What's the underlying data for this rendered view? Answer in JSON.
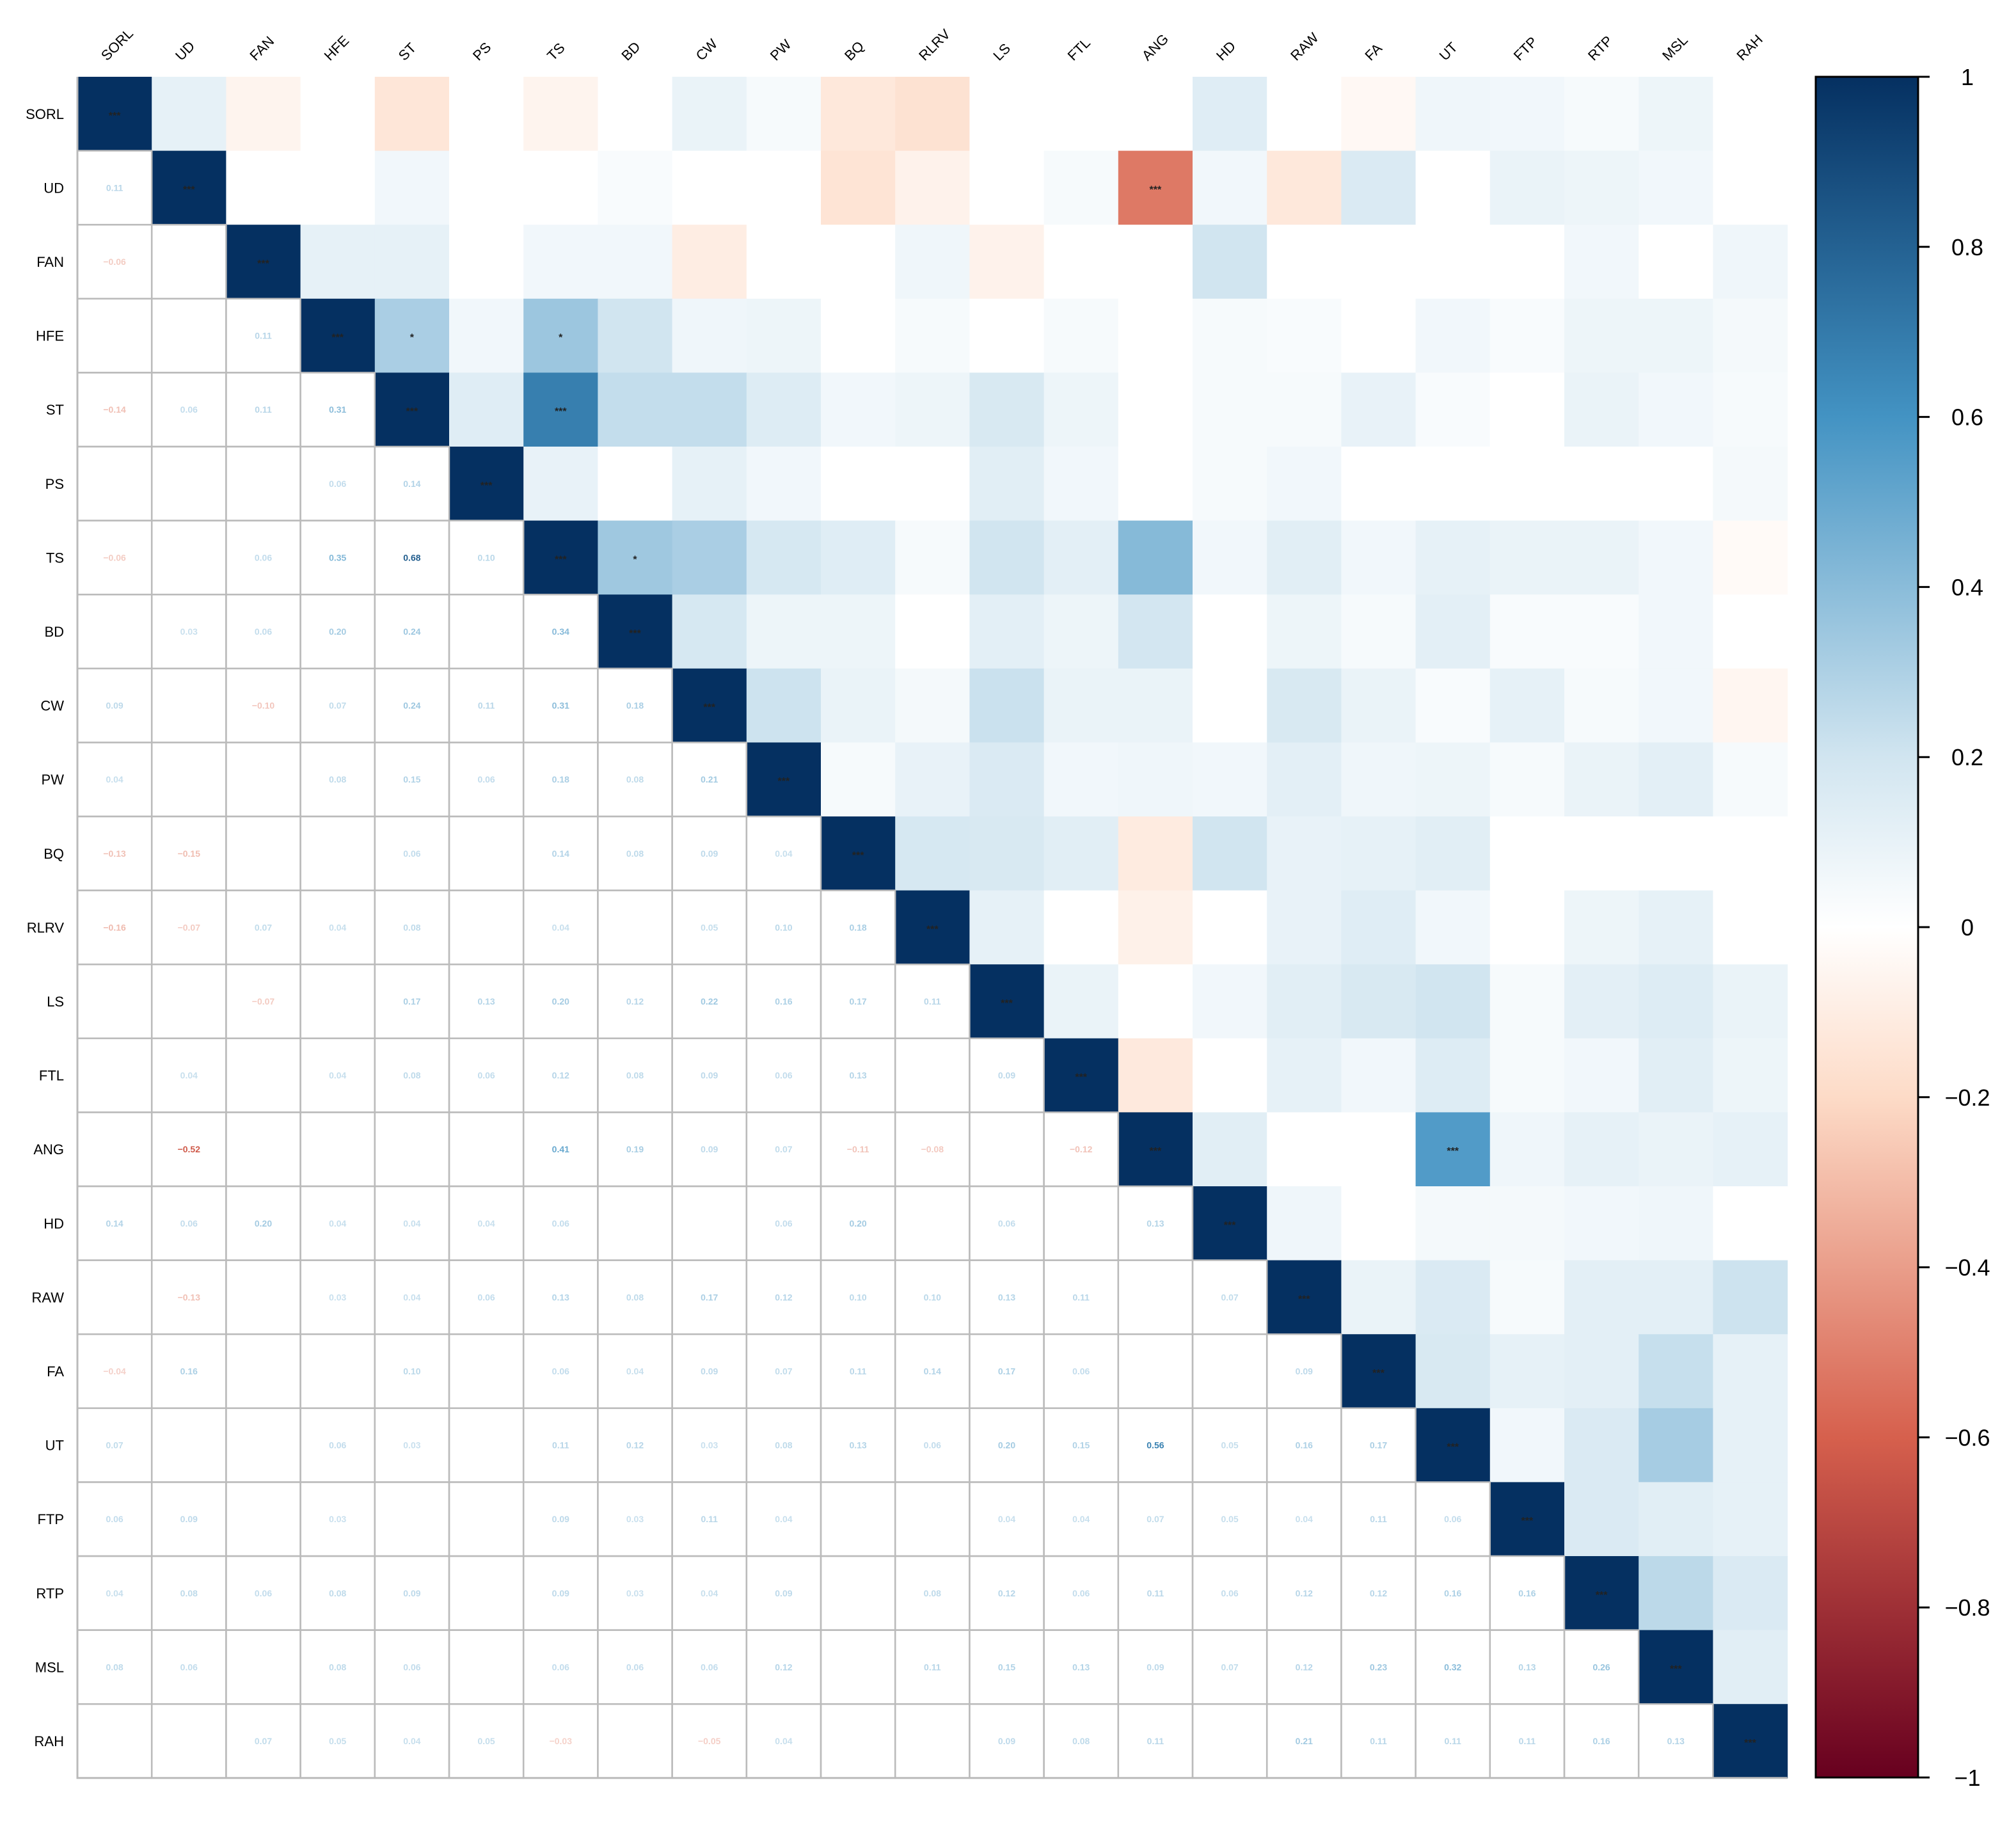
{
  "chart_data": {
    "type": "heatmap",
    "title": "",
    "variables": [
      "SORL",
      "UD",
      "FAN",
      "HFE",
      "ST",
      "PS",
      "TS",
      "BD",
      "CW",
      "PW",
      "BQ",
      "RLRV",
      "LS",
      "FTL",
      "ANG",
      "HD",
      "RAW",
      "FA",
      "UT",
      "FTP",
      "RTP",
      "MSL",
      "RAH"
    ],
    "lower_triangle_labels": [
      [
        "",
        "",
        "",
        "",
        "",
        "",
        "",
        "",
        "",
        "",
        "",
        "",
        "",
        "",
        "",
        "",
        "",
        "",
        "",
        "",
        "",
        "",
        ""
      ],
      [
        "0.11",
        "",
        "",
        "",
        "",
        "",
        "",
        "",
        "",
        "",
        "",
        "",
        "",
        "",
        "",
        "",
        "",
        "",
        "",
        "",
        "",
        "",
        ""
      ],
      [
        "-0.06",
        "",
        "",
        "",
        "",
        "",
        "",
        "",
        "",
        "",
        "",
        "",
        "",
        "",
        "",
        "",
        "",
        "",
        "",
        "",
        "",
        "",
        ""
      ],
      [
        "",
        "",
        "0.11",
        "",
        "",
        "",
        "",
        "",
        "",
        "",
        "",
        "",
        "",
        "",
        "",
        "",
        "",
        "",
        "",
        "",
        "",
        "",
        ""
      ],
      [
        "-0.14",
        "0.06",
        "0.11",
        "0.31",
        "",
        "",
        "",
        "",
        "",
        "",
        "",
        "",
        "",
        "",
        "",
        "",
        "",
        "",
        "",
        "",
        "",
        "",
        ""
      ],
      [
        "",
        "",
        "",
        "0.06",
        "0.14",
        "",
        "",
        "",
        "",
        "",
        "",
        "",
        "",
        "",
        "",
        "",
        "",
        "",
        "",
        "",
        "",
        "",
        ""
      ],
      [
        "-0.06",
        "",
        "0.06",
        "0.35",
        "0.68",
        "0.10",
        "",
        "",
        "",
        "",
        "",
        "",
        "",
        "",
        "",
        "",
        "",
        "",
        "",
        "",
        "",
        "",
        ""
      ],
      [
        "",
        "0.03",
        "0.06",
        "0.20",
        "0.24",
        "",
        "0.34",
        "",
        "",
        "",
        "",
        "",
        "",
        "",
        "",
        "",
        "",
        "",
        "",
        "",
        "",
        "",
        ""
      ],
      [
        "0.09",
        "",
        "-0.10",
        "0.07",
        "0.24",
        "0.11",
        "0.31",
        "0.18",
        "",
        "",
        "",
        "",
        "",
        "",
        "",
        "",
        "",
        "",
        "",
        "",
        "",
        "",
        ""
      ],
      [
        "0.04",
        "",
        "",
        "0.08",
        "0.15",
        "0.06",
        "0.18",
        "0.08",
        "0.21",
        "",
        "",
        "",
        "",
        "",
        "",
        "",
        "",
        "",
        "",
        "",
        "",
        "",
        ""
      ],
      [
        "-0.13",
        "-0.15",
        "",
        "",
        "0.06",
        "",
        "0.14",
        "0.08",
        "0.09",
        "0.04",
        "",
        "",
        "",
        "",
        "",
        "",
        "",
        "",
        "",
        "",
        "",
        "",
        ""
      ],
      [
        "-0.16",
        "-0.07",
        "0.07",
        "0.04",
        "0.08",
        "",
        "0.04",
        "",
        "0.05",
        "0.10",
        "0.18",
        "",
        "",
        "",
        "",
        "",
        "",
        "",
        "",
        "",
        "",
        "",
        ""
      ],
      [
        "",
        "",
        "-0.07",
        "",
        "0.17",
        "0.13",
        "0.20",
        "0.12",
        "0.22",
        "0.16",
        "0.17",
        "0.11",
        "",
        "",
        "",
        "",
        "",
        "",
        "",
        "",
        "",
        "",
        ""
      ],
      [
        "",
        "0.04",
        "",
        "0.04",
        "0.08",
        "0.06",
        "0.12",
        "0.08",
        "0.09",
        "0.06",
        "0.13",
        "",
        "0.09",
        "",
        "",
        "",
        "",
        "",
        "",
        "",
        "",
        "",
        ""
      ],
      [
        "",
        "-0.52",
        "",
        "",
        "",
        "",
        "0.41",
        "0.19",
        "0.09",
        "0.07",
        "-0.11",
        "-0.08",
        "",
        "-0.12",
        "",
        "",
        "",
        "",
        "",
        "",
        "",
        "",
        ""
      ],
      [
        "0.14",
        "0.06",
        "0.20",
        "0.04",
        "0.04",
        "0.04",
        "0.06",
        "",
        "",
        "0.06",
        "0.20",
        "",
        "0.06",
        "",
        "0.13",
        "",
        "",
        "",
        "",
        "",
        "",
        "",
        ""
      ],
      [
        "",
        "-0.13",
        "",
        "0.03",
        "0.04",
        "0.06",
        "0.13",
        "0.08",
        "0.17",
        "0.12",
        "0.10",
        "0.10",
        "0.13",
        "0.11",
        "",
        "0.07",
        "",
        "",
        "",
        "",
        "",
        "",
        ""
      ],
      [
        "-0.04",
        "0.16",
        "",
        "",
        "0.10",
        "",
        "0.06",
        "0.04",
        "0.09",
        "0.07",
        "0.11",
        "0.14",
        "0.17",
        "0.06",
        "",
        "",
        "0.09",
        "",
        "",
        "",
        "",
        "",
        ""
      ],
      [
        "0.07",
        "",
        "",
        "0.06",
        "0.03",
        "",
        "0.11",
        "0.12",
        "0.03",
        "0.08",
        "0.13",
        "0.06",
        "0.20",
        "0.15",
        "0.56",
        "0.05",
        "0.16",
        "0.17",
        "",
        "",
        "",
        "",
        ""
      ],
      [
        "0.06",
        "0.09",
        "",
        "0.03",
        "",
        "",
        "0.09",
        "0.03",
        "0.11",
        "0.04",
        "",
        "",
        "0.04",
        "0.04",
        "0.07",
        "0.05",
        "0.04",
        "0.11",
        "0.06",
        "",
        "",
        "",
        ""
      ],
      [
        "0.04",
        "0.08",
        "0.06",
        "0.08",
        "0.09",
        "",
        "0.09",
        "0.03",
        "0.04",
        "0.09",
        "",
        "0.08",
        "0.12",
        "0.06",
        "0.11",
        "0.06",
        "0.12",
        "0.12",
        "0.16",
        "0.16",
        "",
        "",
        ""
      ],
      [
        "0.08",
        "0.06",
        "",
        "0.08",
        "0.06",
        "",
        "0.06",
        "0.06",
        "0.06",
        "0.12",
        "",
        "0.11",
        "0.15",
        "0.13",
        "0.09",
        "0.07",
        "0.12",
        "0.23",
        "0.32",
        "0.13",
        "0.26",
        "",
        ""
      ],
      [
        "",
        "",
        "0.07",
        "0.05",
        "0.04",
        "0.05",
        "-0.03",
        "",
        "-0.05",
        "0.04",
        "",
        "",
        "0.09",
        "0.08",
        "0.11",
        "",
        "0.21",
        "0.11",
        "0.11",
        "0.11",
        "0.16",
        "0.13",
        ""
      ]
    ],
    "significance_marks": [
      {
        "row": "SORL",
        "col": "SORL",
        "label": "***"
      },
      {
        "row": "UD",
        "col": "UD",
        "label": "***"
      },
      {
        "row": "UD",
        "col": "ANG",
        "label": "***"
      },
      {
        "row": "FAN",
        "col": "FAN",
        "label": "***"
      },
      {
        "row": "HFE",
        "col": "HFE",
        "label": "***"
      },
      {
        "row": "HFE",
        "col": "ST",
        "label": "*"
      },
      {
        "row": "HFE",
        "col": "TS",
        "label": "*"
      },
      {
        "row": "ST",
        "col": "ST",
        "label": "***"
      },
      {
        "row": "ST",
        "col": "TS",
        "label": "***"
      },
      {
        "row": "PS",
        "col": "PS",
        "label": "***"
      },
      {
        "row": "TS",
        "col": "TS",
        "label": "***"
      },
      {
        "row": "TS",
        "col": "BD",
        "label": "*"
      },
      {
        "row": "BD",
        "col": "BD",
        "label": "***"
      },
      {
        "row": "CW",
        "col": "CW",
        "label": "***"
      },
      {
        "row": "PW",
        "col": "PW",
        "label": "***"
      },
      {
        "row": "BQ",
        "col": "BQ",
        "label": "***"
      },
      {
        "row": "RLRV",
        "col": "RLRV",
        "label": "***"
      },
      {
        "row": "LS",
        "col": "LS",
        "label": "***"
      },
      {
        "row": "FTL",
        "col": "FTL",
        "label": "***"
      },
      {
        "row": "ANG",
        "col": "ANG",
        "label": "***"
      },
      {
        "row": "ANG",
        "col": "UT",
        "label": "***"
      },
      {
        "row": "HD",
        "col": "HD",
        "label": "***"
      },
      {
        "row": "RAW",
        "col": "RAW",
        "label": "***"
      },
      {
        "row": "FA",
        "col": "FA",
        "label": "***"
      },
      {
        "row": "UT",
        "col": "UT",
        "label": "***"
      },
      {
        "row": "FTP",
        "col": "FTP",
        "label": "***"
      },
      {
        "row": "RTP",
        "col": "RTP",
        "label": "***"
      },
      {
        "row": "MSL",
        "col": "MSL",
        "label": "***"
      },
      {
        "row": "RAH",
        "col": "RAH",
        "label": "***"
      }
    ],
    "colorbar": {
      "range": [
        -1,
        1
      ],
      "ticks": [
        1,
        0.8,
        0.6,
        0.4,
        0.2,
        0,
        -0.2,
        -0.4,
        -0.6,
        -0.8,
        -1
      ],
      "tick_labels": [
        "1",
        "0.8",
        "0.6",
        "0.4",
        "0.2",
        "0",
        "−0.2",
        "−0.4",
        "−0.6",
        "−0.8",
        "−1"
      ],
      "colors": {
        "neg_strong": "#67001f",
        "neg_mid": "#d6604d",
        "neg_light": "#fddbc7",
        "neutral": "#ffffff",
        "pos_light": "#d1e5f0",
        "pos_mid": "#4393c3",
        "pos_strong": "#053061"
      }
    },
    "grid_color": "#bbbbbb",
    "legend": "right"
  }
}
